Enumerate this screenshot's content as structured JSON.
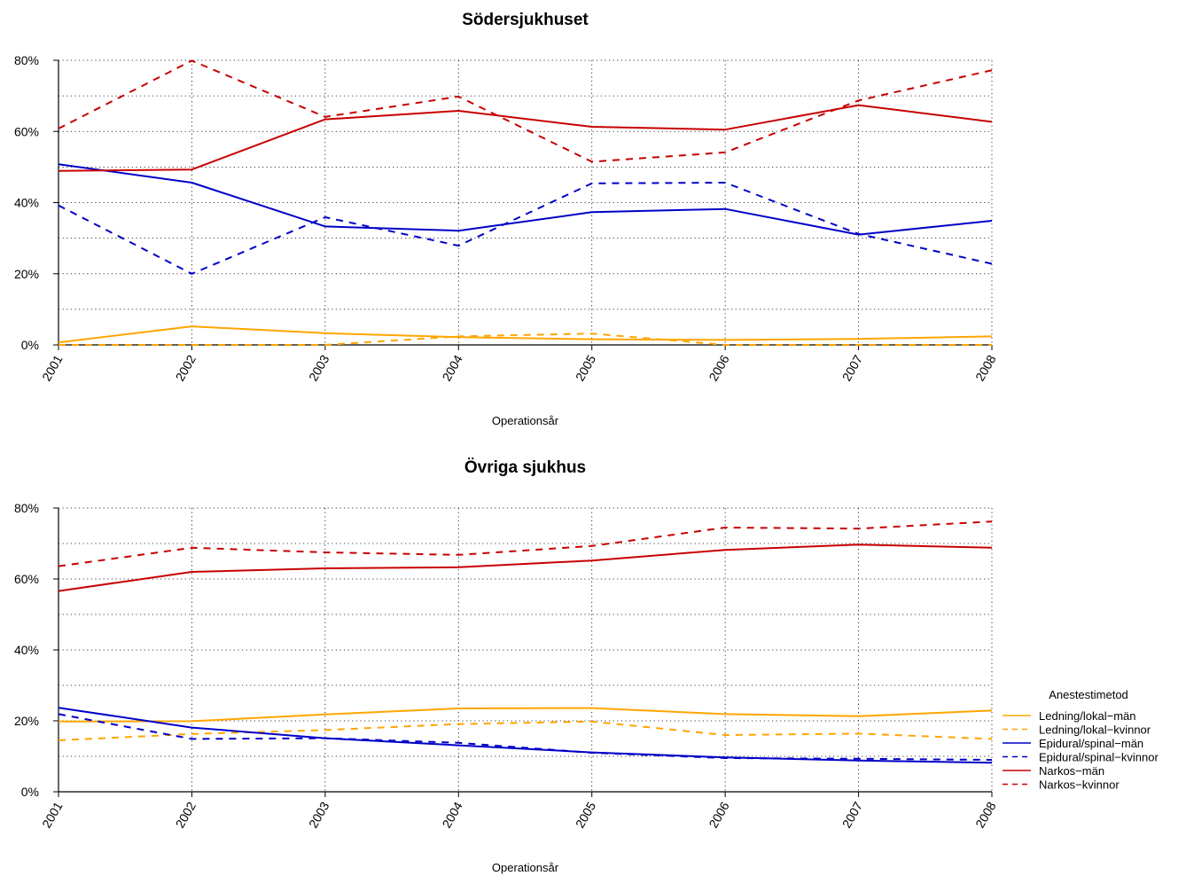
{
  "chart_data": [
    {
      "type": "line",
      "title": "Södersjukhuset",
      "xlabel": "Operationsår",
      "ylabel": "",
      "x": [
        "2001",
        "2002",
        "2003",
        "2004",
        "2005",
        "2006",
        "2007",
        "2008"
      ],
      "ylim": [
        0,
        80
      ],
      "yticks": [
        "0%",
        "20%",
        "40%",
        "60%",
        "80%"
      ],
      "grid": true,
      "series": [
        {
          "name": "Ledning/lokal−män",
          "color": "#FFA500",
          "dash": "solid",
          "values": [
            0.7,
            5.2,
            3.3,
            2.2,
            1.6,
            1.4,
            1.7,
            2.4
          ]
        },
        {
          "name": "Ledning/lokal−kvinnor",
          "color": "#FFA500",
          "dash": "dashed",
          "values": [
            0.0,
            0.0,
            0.0,
            2.4,
            3.2,
            0.0,
            0.0,
            0.0
          ]
        },
        {
          "name": "Epidural/spinal−män",
          "color": "#0000C8",
          "dash": "solid",
          "values": [
            50.8,
            45.6,
            33.3,
            32.1,
            37.3,
            38.2,
            31.0,
            34.9
          ]
        },
        {
          "name": "Epidural/spinal−kvinnor",
          "color": "#0000C8",
          "dash": "dashed",
          "values": [
            39.2,
            20.0,
            35.9,
            27.9,
            45.4,
            45.6,
            31.2,
            22.8
          ]
        },
        {
          "name": "Narkos−män",
          "color": "#C80000",
          "dash": "solid",
          "values": [
            48.9,
            49.3,
            63.4,
            65.8,
            61.3,
            60.5,
            67.4,
            62.7
          ]
        },
        {
          "name": "Narkos−kvinnor",
          "color": "#C80000",
          "dash": "dashed",
          "values": [
            60.8,
            79.9,
            64.1,
            69.8,
            51.5,
            54.1,
            68.7,
            77.2
          ]
        }
      ]
    },
    {
      "type": "line",
      "title": "Övriga sjukhus",
      "xlabel": "Operationsår",
      "ylabel": "",
      "x": [
        "2001",
        "2002",
        "2003",
        "2004",
        "2005",
        "2006",
        "2007",
        "2008"
      ],
      "ylim": [
        0,
        80
      ],
      "yticks": [
        "0%",
        "20%",
        "40%",
        "60%",
        "80%"
      ],
      "grid": true,
      "series": [
        {
          "name": "Ledning/lokal−män",
          "color": "#FFA500",
          "dash": "solid",
          "values": [
            19.8,
            19.9,
            21.8,
            23.5,
            23.6,
            21.9,
            21.3,
            22.9
          ]
        },
        {
          "name": "Ledning/lokal−kvinnor",
          "color": "#FFA500",
          "dash": "dashed",
          "values": [
            14.5,
            16.3,
            17.4,
            19.1,
            19.8,
            16.0,
            16.4,
            14.9
          ]
        },
        {
          "name": "Epidural/spinal−män",
          "color": "#0000C8",
          "dash": "solid",
          "values": [
            23.7,
            18.1,
            15.1,
            13.1,
            11.1,
            9.7,
            8.8,
            8.2
          ]
        },
        {
          "name": "Epidural/spinal−kvinnor",
          "color": "#0000C8",
          "dash": "dashed",
          "values": [
            21.9,
            14.9,
            15.1,
            13.8,
            11.0,
            9.5,
            9.3,
            9.0
          ]
        },
        {
          "name": "Narkos−män",
          "color": "#C80000",
          "dash": "solid",
          "values": [
            56.6,
            62.0,
            63.0,
            63.3,
            65.2,
            68.2,
            69.7,
            68.8
          ]
        },
        {
          "name": "Narkos−kvinnor",
          "color": "#C80000",
          "dash": "dashed",
          "values": [
            63.6,
            68.8,
            67.5,
            66.8,
            69.3,
            74.5,
            74.2,
            76.2
          ]
        }
      ]
    }
  ],
  "legend": {
    "title": "Anestestimetod",
    "placement": "right",
    "entries": [
      {
        "label": "Ledning/lokal−män",
        "color": "#FFA500",
        "dash": "solid"
      },
      {
        "label": "Ledning/lokal−kvinnor",
        "color": "#FFA500",
        "dash": "dashed"
      },
      {
        "label": "Epidural/spinal−män",
        "color": "#0000C8",
        "dash": "solid"
      },
      {
        "label": "Epidural/spinal−kvinnor",
        "color": "#0000C8",
        "dash": "dashed"
      },
      {
        "label": "Narkos−män",
        "color": "#C80000",
        "dash": "solid"
      },
      {
        "label": "Narkos−kvinnor",
        "color": "#C80000",
        "dash": "dashed"
      }
    ]
  }
}
